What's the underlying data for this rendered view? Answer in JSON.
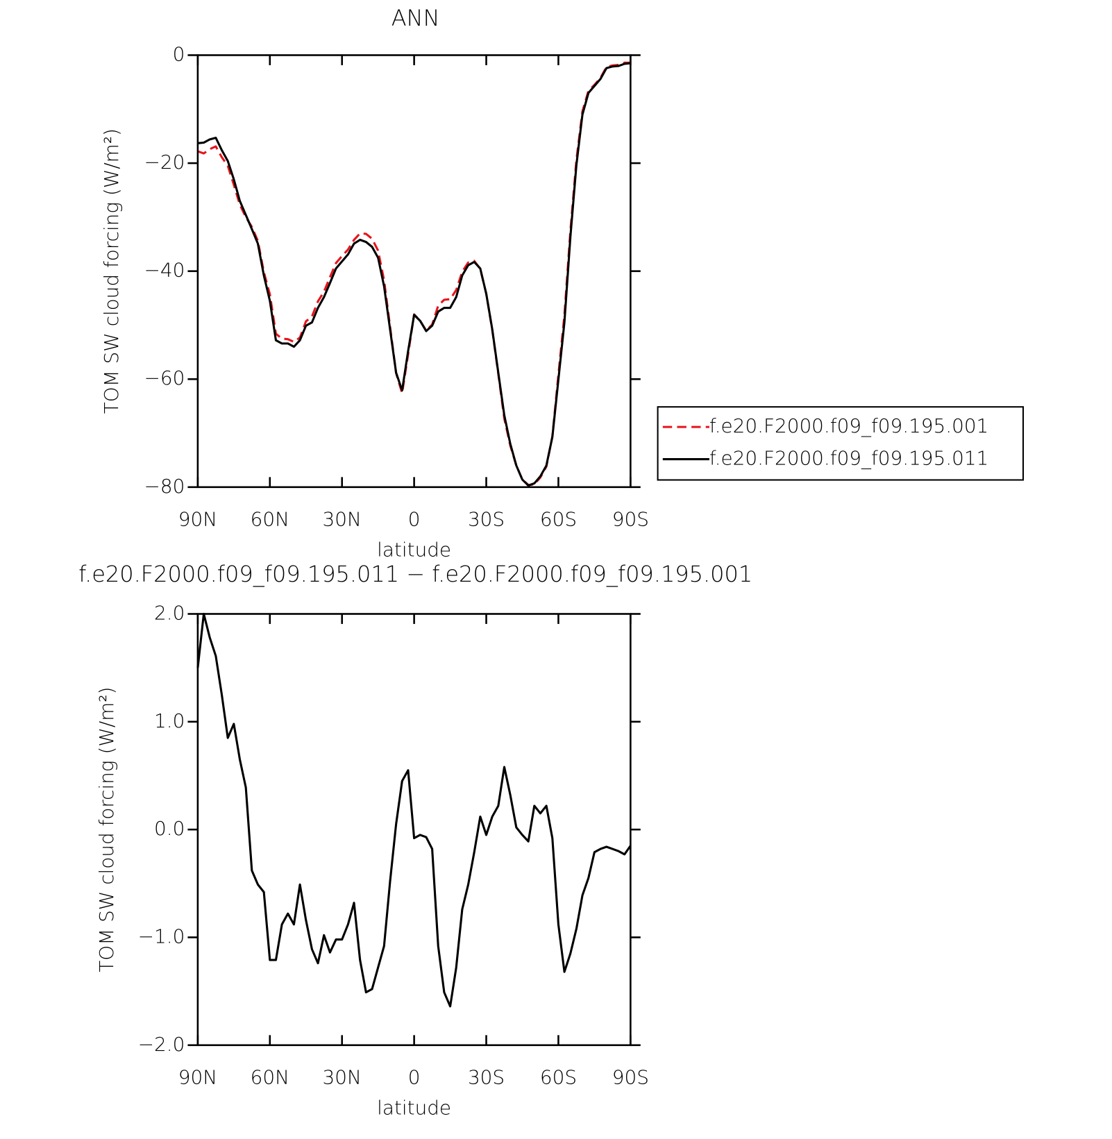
{
  "chart_data": [
    {
      "type": "line",
      "title": "ANN",
      "xlabel": "latitude",
      "ylabel": "TOM SW cloud forcing (W/m²)",
      "x": [
        90,
        87.5,
        85,
        82.5,
        80,
        77.5,
        75,
        72.5,
        70,
        67.5,
        65,
        62.5,
        60,
        57.5,
        55,
        52.5,
        50,
        47.5,
        45,
        42.5,
        40,
        37.5,
        35,
        32.5,
        30,
        27.5,
        25,
        22.5,
        20,
        17.5,
        15,
        12.5,
        10,
        7.5,
        5,
        2.5,
        0,
        -2.5,
        -5,
        -7.5,
        -10,
        -12.5,
        -15,
        -17.5,
        -20,
        -22.5,
        -25,
        -27.5,
        -30,
        -32.5,
        -35,
        -37.5,
        -40,
        -42.5,
        -45,
        -47.5,
        -50,
        -52.5,
        -55,
        -57.5,
        -60,
        -62.5,
        -65,
        -67.5,
        -70,
        -72.5,
        -75,
        -77.5,
        -80,
        -82.5,
        -85,
        -87.5,
        -90
      ],
      "xlim": [
        90,
        -90
      ],
      "xticks": [
        {
          "value": 90,
          "label": "90N"
        },
        {
          "value": 60,
          "label": "60N"
        },
        {
          "value": 30,
          "label": "30N"
        },
        0,
        {
          "value": -30,
          "label": "30S"
        },
        {
          "value": -60,
          "label": "60S"
        },
        {
          "value": -90,
          "label": "90S"
        }
      ],
      "ylim": [
        -80,
        0
      ],
      "yticks": [
        0,
        {
          "value": -20,
          "label": "−20"
        },
        {
          "value": -40,
          "label": "−40"
        },
        {
          "value": -60,
          "label": "−60"
        },
        {
          "value": -80,
          "label": "−80"
        }
      ],
      "legend": "right",
      "series": [
        {
          "name": "f.e20.F2000.f09_f09.195.001",
          "color": "#e8141c",
          "dashed": true,
          "values": [
            -17.8,
            -18.2,
            -17.4,
            -16.9,
            -18.9,
            -20.5,
            -24,
            -27.7,
            -30,
            -31.8,
            -34.4,
            -40.2,
            -44.3,
            -51.6,
            -52.5,
            -52.6,
            -53.1,
            -52.3,
            -49.3,
            -48.4,
            -45.6,
            -43.8,
            -41.1,
            -38.5,
            -37.2,
            -36,
            -34.2,
            -33,
            -33.1,
            -34,
            -36.2,
            -41.7,
            -50.3,
            -58.9,
            -62.6,
            -55.4,
            -48,
            -49.2,
            -51,
            -49.9,
            -46.4,
            -45.3,
            -45.2,
            -43.5,
            -40.1,
            -38.4,
            -38.1,
            -39.6,
            -44.2,
            -50.9,
            -59,
            -67.3,
            -72.3,
            -76,
            -78.6,
            -79.6,
            -79.5,
            -78.2,
            -76.2,
            -70.6,
            -59.2,
            -48.2,
            -32.5,
            -19.4,
            -10.4,
            -6.6,
            -5.5,
            -4.2,
            -2.2,
            -1.9,
            -1.8,
            -1.4,
            -1.4
          ]
        },
        {
          "name": "f.e20.F2000.f09_f09.195.011",
          "color": "#000000",
          "dashed": false,
          "values": [
            -16.3,
            -16.2,
            -15.6,
            -15.3,
            -17.6,
            -19.6,
            -23,
            -27,
            -29.6,
            -32.2,
            -34.9,
            -40.8,
            -45.5,
            -52.8,
            -53.4,
            -53.4,
            -54,
            -52.8,
            -50.1,
            -49.5,
            -46.8,
            -44.8,
            -42.2,
            -39.5,
            -38.2,
            -36.9,
            -34.9,
            -34.2,
            -34.6,
            -35.5,
            -37.5,
            -42.8,
            -50.8,
            -58.8,
            -62.1,
            -54.8,
            -48.1,
            -49.2,
            -51.1,
            -50.1,
            -47.5,
            -46.8,
            -46.8,
            -44.8,
            -40.8,
            -38.9,
            -38.3,
            -39.5,
            -44.2,
            -50.8,
            -58.8,
            -66.7,
            -72,
            -76,
            -78.6,
            -79.7,
            -79.3,
            -78,
            -76,
            -70.7,
            -60.1,
            -49.5,
            -33.6,
            -20.3,
            -11,
            -7,
            -5.7,
            -4.4,
            -2.4,
            -2.1,
            -2,
            -1.6,
            -1.5
          ]
        }
      ]
    },
    {
      "type": "line",
      "title": "f.e20.F2000.f09_f09.195.011 − f.e20.F2000.f09_f09.195.001",
      "xlabel": "latitude",
      "ylabel": "TOM SW cloud forcing (W/m²)",
      "x": [
        90,
        87.5,
        85,
        82.5,
        80,
        77.5,
        75,
        72.5,
        70,
        67.5,
        65,
        62.5,
        60,
        57.5,
        55,
        52.5,
        50,
        47.5,
        45,
        42.5,
        40,
        37.5,
        35,
        32.5,
        30,
        27.5,
        25,
        22.5,
        20,
        17.5,
        15,
        12.5,
        10,
        7.5,
        5,
        2.5,
        0,
        -2.5,
        -5,
        -7.5,
        -10,
        -12.5,
        -15,
        -17.5,
        -20,
        -22.5,
        -25,
        -27.5,
        -30,
        -32.5,
        -35,
        -37.5,
        -40,
        -42.5,
        -45,
        -47.5,
        -50,
        -52.5,
        -55,
        -57.5,
        -60,
        -62.5,
        -65,
        -67.5,
        -70,
        -72.5,
        -75,
        -77.5,
        -80,
        -82.5,
        -85,
        -87.5,
        -90
      ],
      "xlim": [
        90,
        -90
      ],
      "xticks": [
        {
          "value": 90,
          "label": "90N"
        },
        {
          "value": 60,
          "label": "60N"
        },
        {
          "value": 30,
          "label": "30N"
        },
        0,
        {
          "value": -30,
          "label": "30S"
        },
        {
          "value": -60,
          "label": "60S"
        },
        {
          "value": -90,
          "label": "90S"
        }
      ],
      "ylim": [
        -2,
        2
      ],
      "yticks": [
        {
          "value": 2,
          "label": "2.0"
        },
        {
          "value": 1,
          "label": "1.0"
        },
        {
          "value": 0,
          "label": "0.0"
        },
        {
          "value": -1,
          "label": "−1.0"
        },
        {
          "value": -2,
          "label": "−2.0"
        }
      ],
      "color": "#000000",
      "values": [
        1.5,
        2.0,
        1.78,
        1.61,
        1.25,
        0.85,
        0.98,
        0.65,
        0.39,
        -0.38,
        -0.51,
        -0.58,
        -1.21,
        -1.21,
        -0.88,
        -0.78,
        -0.88,
        -0.51,
        -0.84,
        -1.11,
        -1.24,
        -0.98,
        -1.14,
        -1.02,
        -1.02,
        -0.88,
        -0.68,
        -1.21,
        -1.51,
        -1.48,
        -1.28,
        -1.08,
        -0.48,
        0.05,
        0.45,
        0.55,
        -0.08,
        -0.05,
        -0.07,
        -0.18,
        -1.08,
        -1.51,
        -1.64,
        -1.28,
        -0.74,
        -0.51,
        -0.21,
        0.12,
        -0.05,
        0.12,
        0.22,
        0.58,
        0.32,
        0.02,
        -0.05,
        -0.11,
        0.22,
        0.15,
        0.22,
        -0.08,
        -0.88,
        -1.32,
        -1.15,
        -0.92,
        -0.61,
        -0.45,
        -0.21,
        -0.18,
        -0.16,
        -0.18,
        -0.2,
        -0.23,
        -0.15
      ]
    }
  ]
}
